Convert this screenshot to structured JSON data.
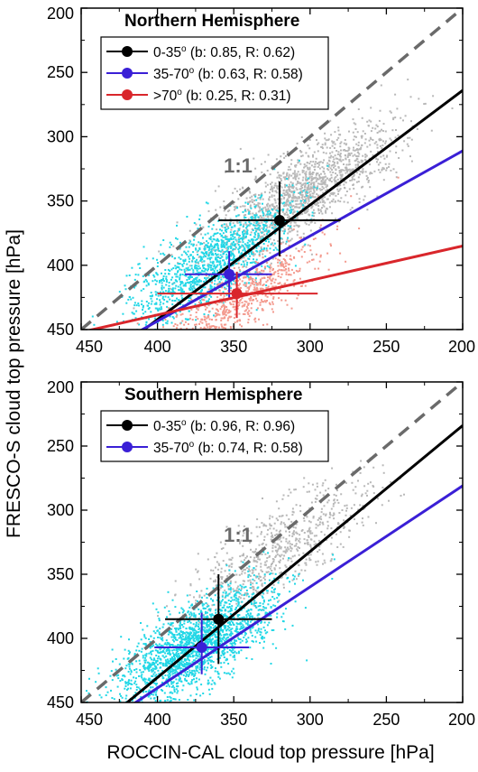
{
  "figure": {
    "ylabel": "FRESCO-S cloud top pressure [hPa]",
    "xlabel": "ROCCIN-CAL cloud top pressure [hPa]"
  },
  "colors": {
    "black_series": "#000000",
    "blue_series": "#3a1fd6",
    "red_series": "#d9262b",
    "gray_scatter": "#b8b8b8",
    "cyan_scatter": "#22d7e6",
    "salmon_scatter": "#f39a8e",
    "one_to_one": "#6a6a6a"
  },
  "chart_data": [
    {
      "type": "scatter",
      "title": "Northern Hemisphere",
      "xlim": [
        450,
        200
      ],
      "ylim": [
        450,
        200
      ],
      "xticks": [
        "450",
        "400",
        "350",
        "300",
        "250",
        "200"
      ],
      "yticks": [
        "200",
        "250",
        "300",
        "350",
        "400",
        "450"
      ],
      "one_to_one_label": "1:1",
      "legend_position": "top-left",
      "series": [
        {
          "name": "0-35° (b: 0.85, R: 0.62)",
          "name_main": "0-35",
          "name_sup": "o",
          "name_rest": " (b: 0.85, R: 0.62)",
          "color": "#000000",
          "slope": 0.85,
          "R": 0.62,
          "fit": [
            [
              420,
              460
            ],
            [
              200,
              264
            ]
          ],
          "center": [
            320,
            365
          ],
          "x_range": [
            360,
            280
          ],
          "y_range": [
            335,
            393
          ]
        },
        {
          "name": "35-70° (b: 0.63, R: 0.58)",
          "name_main": "35-70",
          "name_sup": "o",
          "name_rest": " (b: 0.63, R: 0.58)",
          "color": "#3a1fd6",
          "slope": 0.63,
          "R": 0.58,
          "fit": [
            [
              425,
              460
            ],
            [
              200,
              311
            ]
          ],
          "center": [
            353,
            407
          ],
          "x_range": [
            382,
            325
          ],
          "y_range": [
            389,
            425
          ]
        },
        {
          "name": ">70° (b: 0.25, R: 0.31)",
          "name_main": ">70",
          "name_sup": "o",
          "name_rest": " (b: 0.25, R: 0.31)",
          "color": "#d9262b",
          "slope": 0.25,
          "R": 0.31,
          "fit": [
            [
              450,
              452
            ],
            [
              200,
              385
            ]
          ],
          "center": [
            348,
            422
          ],
          "x_range": [
            400,
            295
          ],
          "y_range": [
            405,
            441
          ]
        }
      ],
      "clouds": [
        {
          "color": "gray",
          "center": [
            305,
            343
          ],
          "count": 1500
        },
        {
          "color": "cyan",
          "center": [
            365,
            400
          ],
          "count": 1300
        },
        {
          "color": "salmon",
          "center": [
            345,
            425
          ],
          "count": 700
        }
      ]
    },
    {
      "type": "scatter",
      "title": "Southern Hemisphere",
      "xlim": [
        450,
        200
      ],
      "ylim": [
        450,
        200
      ],
      "xticks": [
        "450",
        "400",
        "350",
        "300",
        "250",
        "200"
      ],
      "yticks": [
        "200",
        "250",
        "300",
        "350",
        "400",
        "450"
      ],
      "one_to_one_label": "1:1",
      "legend_position": "top-left",
      "series": [
        {
          "name": "0-35° (b: 0.96, R: 0.96)",
          "name_main": "0-35",
          "name_sup": "o",
          "name_rest": " (b: 0.96, R: 0.96)",
          "color": "#000000",
          "slope": 0.96,
          "R": 0.96,
          "fit": [
            [
              430,
              460
            ],
            [
              200,
              234
            ]
          ],
          "center": [
            360,
            385
          ],
          "x_range": [
            395,
            325
          ],
          "y_range": [
            350,
            420
          ]
        },
        {
          "name": "35-70° (b: 0.74, R: 0.58)",
          "name_main": "35-70",
          "name_sup": "o",
          "name_rest": " (b: 0.74, R: 0.58)",
          "color": "#3a1fd6",
          "slope": 0.74,
          "R": 0.58,
          "fit": [
            [
              427,
              460
            ],
            [
              200,
              281
            ]
          ],
          "center": [
            371,
            407
          ],
          "x_range": [
            402,
            340
          ],
          "y_range": [
            380,
            428
          ]
        }
      ],
      "clouds": [
        {
          "color": "gray",
          "center": [
            320,
            330
          ],
          "count": 700
        },
        {
          "color": "cyan",
          "center": [
            375,
            405
          ],
          "count": 2000
        }
      ]
    }
  ]
}
